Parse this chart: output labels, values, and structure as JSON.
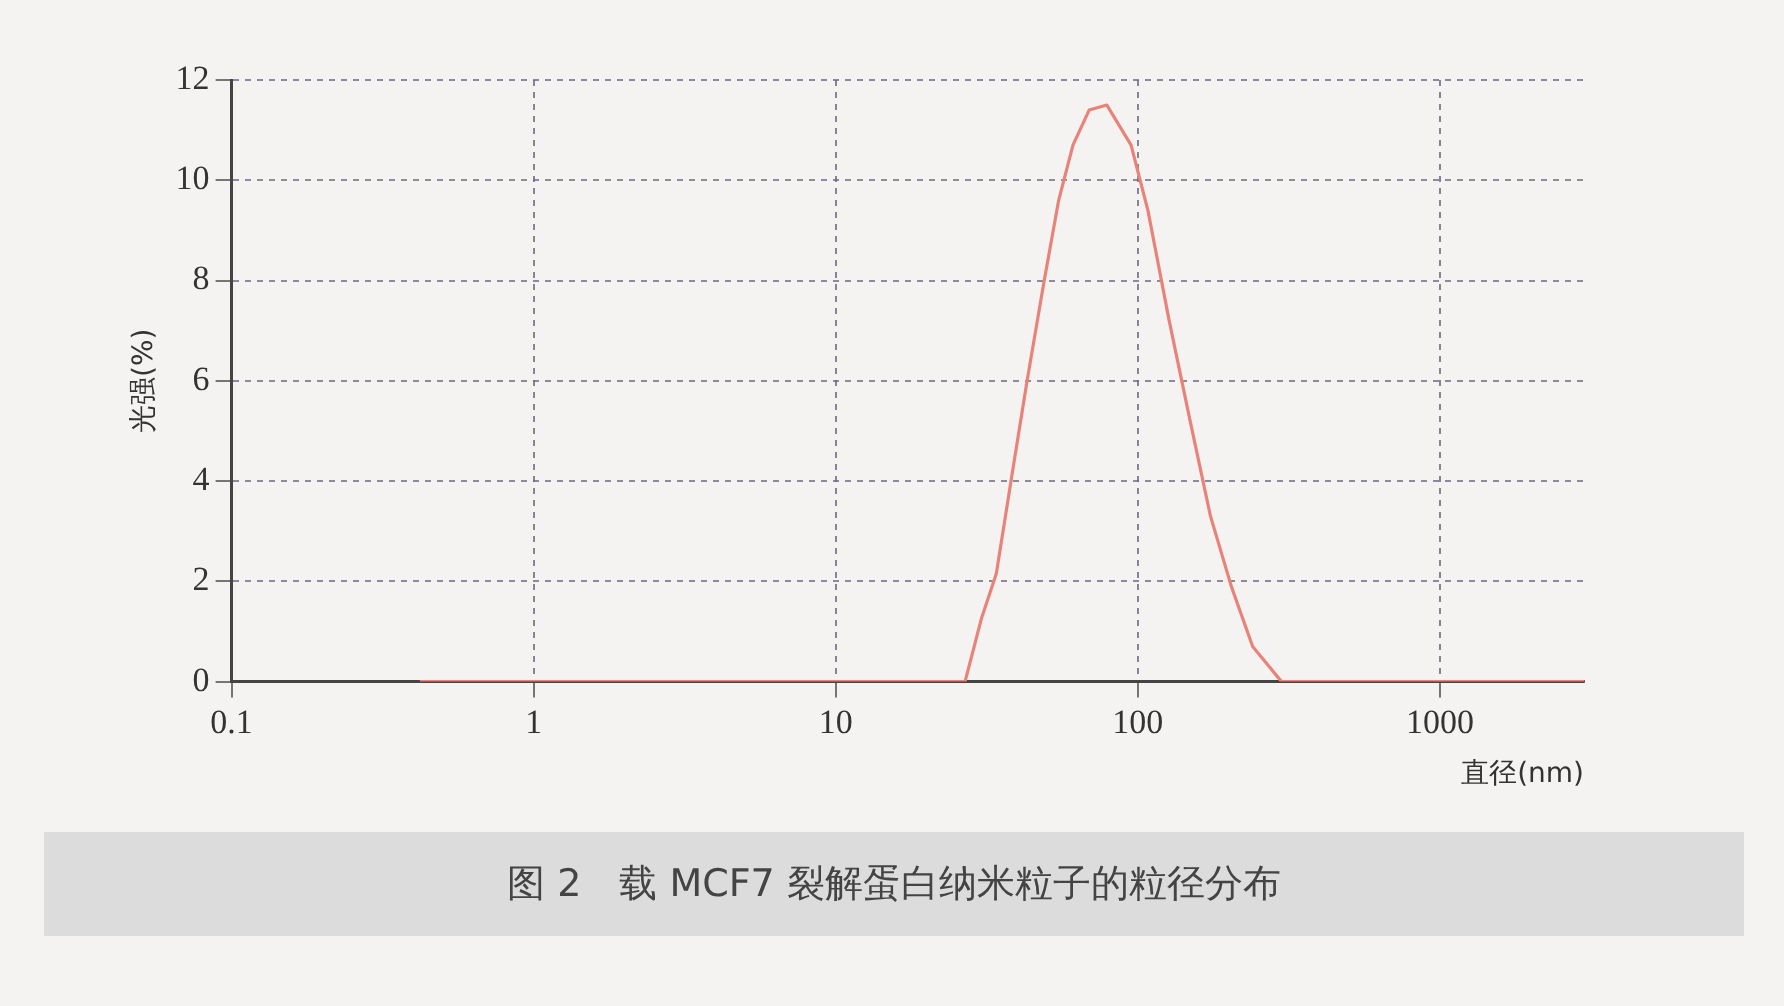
{
  "chart_data": {
    "type": "line",
    "xlabel": "直径(nm)",
    "ylabel": "光强(%)",
    "annotations": [
      "图 2　载 MCF7 裂解蛋白纳米粒子的粒径分布"
    ],
    "log": "x",
    "xlim": [
      0.1,
      3000
    ],
    "xticks": [
      0.1,
      1,
      10,
      100,
      1000
    ],
    "ylim": [
      0,
      12
    ],
    "yticks": [
      0,
      2,
      4,
      6,
      8,
      10,
      12
    ],
    "grid": true,
    "legend": false,
    "marker": "none",
    "line_style": "solid",
    "series": [
      {
        "color": "#e8837a",
        "x": [
          0.42,
          1,
          10,
          20,
          26.8,
          30.4,
          34,
          38.5,
          43,
          49,
          54.7,
          61,
          69,
          79,
          95,
          108,
          127,
          149,
          174,
          204,
          240,
          299,
          500,
          1000,
          3000
        ],
        "values": [
          0,
          0,
          0,
          0,
          0,
          1.27,
          2.15,
          4.2,
          6.0,
          8.0,
          9.6,
          10.7,
          11.4,
          11.5,
          10.7,
          9.4,
          7.2,
          5.2,
          3.3,
          1.9,
          0.7,
          0,
          0,
          0,
          0
        ]
      }
    ]
  }
}
